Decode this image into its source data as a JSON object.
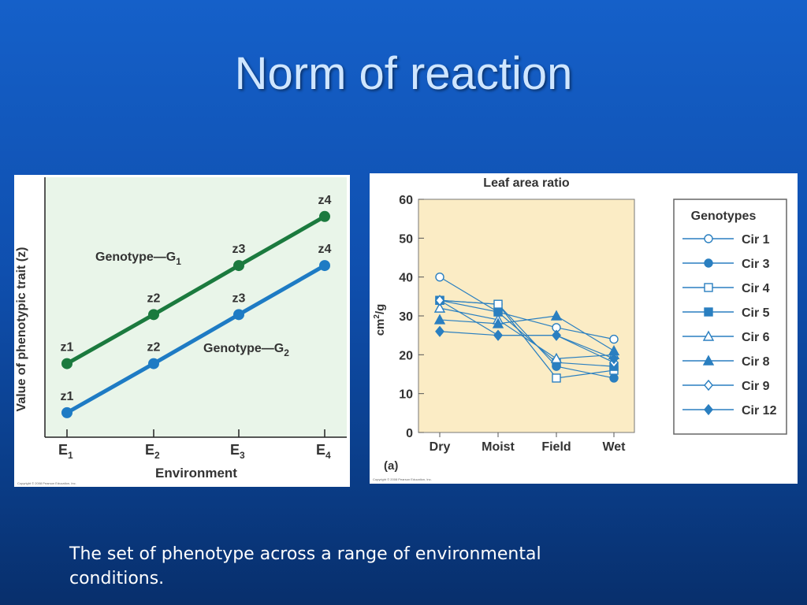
{
  "slide": {
    "title": "Norm of reaction",
    "caption": "The set of phenotype across a range of environmental conditions."
  },
  "colors": {
    "g1": "#1b7a3e",
    "g2": "#1e7bc4",
    "right_series": "#2a7fc0",
    "left_plot_bg": "#e9f5e9",
    "right_plot_bg": "#fbecc5"
  },
  "chart_data": [
    {
      "type": "line",
      "title": "",
      "xlabel": "Environment",
      "ylabel": "Value of phenotypic trait (z)",
      "categories": [
        "E1",
        "E2",
        "E3",
        "E4"
      ],
      "category_subscripts": [
        "1",
        "2",
        "3",
        "4"
      ],
      "copyright": "Copyright © 2008 Pearson Education, Inc.",
      "series": [
        {
          "name": "Genotype—G1",
          "label_main": "Genotype—G",
          "label_sub": "1",
          "values": [
            2,
            3,
            4,
            5
          ],
          "point_labels": [
            "z1",
            "z2",
            "z3",
            "z4"
          ]
        },
        {
          "name": "Genotype—G2",
          "label_main": "Genotype—G",
          "label_sub": "2",
          "values": [
            1,
            2,
            3,
            4
          ],
          "point_labels": [
            "z1",
            "z2",
            "z3",
            "z4"
          ]
        }
      ],
      "ylim": [
        0.5,
        5.8
      ],
      "grid": false,
      "legend": "none"
    },
    {
      "type": "line",
      "title": "Leaf area ratio",
      "xlabel": "",
      "ylabel": "cm2/g",
      "ylabel_main": "cm",
      "ylabel_sup": "2",
      "ylabel_tail": "/g",
      "panel_label": "(a)",
      "copyright": "Copyright © 2008 Pearson Education, Inc.",
      "categories": [
        "Dry",
        "Moist",
        "Field",
        "Wet"
      ],
      "yticks": [
        0,
        10,
        20,
        30,
        40,
        50,
        60
      ],
      "ylim": [
        0,
        60
      ],
      "grid": false,
      "legend": "right",
      "legend_title": "Genotypes",
      "series": [
        {
          "name": "Cir 1",
          "marker": "circle-open",
          "values": [
            40,
            31,
            27,
            24
          ]
        },
        {
          "name": "Cir 3",
          "marker": "circle-filled",
          "values": [
            34,
            33,
            17,
            14
          ]
        },
        {
          "name": "Cir 4",
          "marker": "square-open",
          "values": [
            34,
            33,
            14,
            16
          ]
        },
        {
          "name": "Cir 5",
          "marker": "square-filled",
          "values": [
            34,
            31,
            18,
            17
          ]
        },
        {
          "name": "Cir 6",
          "marker": "triangle-open",
          "values": [
            32,
            29,
            19,
            20
          ]
        },
        {
          "name": "Cir 8",
          "marker": "triangle-filled",
          "values": [
            29,
            28,
            30,
            21
          ]
        },
        {
          "name": "Cir 9",
          "marker": "diamond-open",
          "values": [
            34,
            25,
            25,
            18
          ]
        },
        {
          "name": "Cir 12",
          "marker": "diamond-filled",
          "values": [
            26,
            25,
            25,
            19
          ]
        }
      ]
    }
  ]
}
